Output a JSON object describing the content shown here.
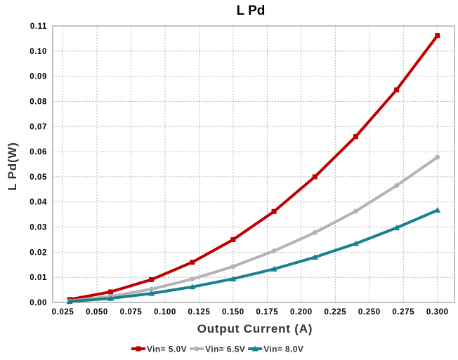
{
  "chart_data": {
    "type": "line",
    "title": "L Pd",
    "xlabel": "Output Current (A)",
    "ylabel": "L Pd(W)",
    "xlim": [
      0.0175,
      0.3125
    ],
    "ylim": [
      0,
      0.11
    ],
    "xticks": [
      "0.025",
      "0.050",
      "0.075",
      "0.100",
      "0.125",
      "0.150",
      "0.175",
      "0.200",
      "0.225",
      "0.250",
      "0.275",
      "0.300"
    ],
    "yticks": [
      "0.00",
      "0.01",
      "0.02",
      "0.03",
      "0.04",
      "0.05",
      "0.06",
      "0.07",
      "0.08",
      "0.09",
      "0.10",
      "0.11"
    ],
    "grid": true,
    "legend_position": "bottom",
    "x": [
      0.03,
      0.06,
      0.09,
      0.12,
      0.15,
      0.18,
      0.21,
      0.24,
      0.27,
      0.3
    ],
    "series": [
      {
        "name": "Vin= 5.0V",
        "color": "#c00000",
        "marker": "square",
        "values": [
          0.0012,
          0.0042,
          0.0091,
          0.016,
          0.025,
          0.0362,
          0.05,
          0.066,
          0.0846,
          0.1062
        ]
      },
      {
        "name": "Vin= 6.5V",
        "color": "#b4b4b4",
        "marker": "circle",
        "values": [
          0.0006,
          0.0024,
          0.0053,
          0.0093,
          0.0143,
          0.0205,
          0.0278,
          0.0363,
          0.0465,
          0.0578
        ]
      },
      {
        "name": "Vin= 8.0V",
        "color": "#17818c",
        "marker": "triangle",
        "values": [
          0.0004,
          0.0016,
          0.0036,
          0.0062,
          0.0094,
          0.0133,
          0.018,
          0.0234,
          0.0297,
          0.0367
        ]
      }
    ]
  }
}
